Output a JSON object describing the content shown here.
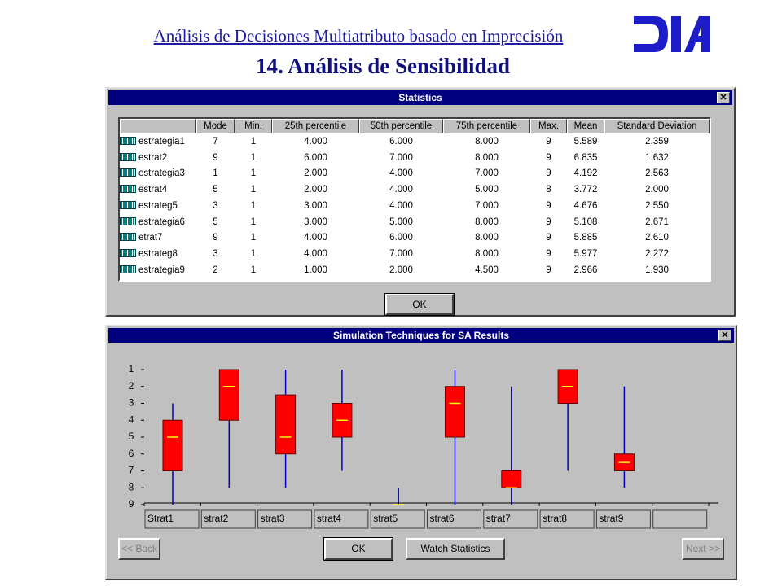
{
  "header": {
    "subtitle": "Análisis de Decisiones Multiatributo basado en Imprecisión",
    "title": "14. Análisis de Sensibilidad"
  },
  "stats": {
    "title": "Statistics",
    "table": {
      "columns": [
        "",
        "Mode",
        "Min.",
        "25th percentile",
        "50th percentile",
        "75th percentile",
        "Max.",
        "Mean",
        "Standard Deviation"
      ],
      "rows": [
        [
          "estrategia1",
          "7",
          "1",
          "4.000",
          "6.000",
          "8.000",
          "9",
          "5.589",
          "2.359"
        ],
        [
          "estrat2",
          "9",
          "1",
          "6.000",
          "7.000",
          "8.000",
          "9",
          "6.835",
          "1.632"
        ],
        [
          "estrategia3",
          "1",
          "1",
          "2.000",
          "4.000",
          "7.000",
          "9",
          "4.192",
          "2.563"
        ],
        [
          "estrat4",
          "5",
          "1",
          "2.000",
          "4.000",
          "5.000",
          "8",
          "3.772",
          "2.000"
        ],
        [
          "estrateg5",
          "3",
          "1",
          "3.000",
          "4.000",
          "7.000",
          "9",
          "4.676",
          "2.550"
        ],
        [
          "estrategia6",
          "5",
          "1",
          "3.000",
          "5.000",
          "8.000",
          "9",
          "5.108",
          "2.671"
        ],
        [
          "etrat7",
          "9",
          "1",
          "4.000",
          "6.000",
          "8.000",
          "9",
          "5.885",
          "2.610"
        ],
        [
          "estrateg8",
          "3",
          "1",
          "4.000",
          "7.000",
          "8.000",
          "9",
          "5.977",
          "2.272"
        ],
        [
          "estrategia9",
          "2",
          "1",
          "1.000",
          "2.000",
          "4.500",
          "9",
          "2.966",
          "1.930"
        ]
      ]
    },
    "ok": "OK"
  },
  "sim": {
    "title": "Simulation Techniques for SA Results",
    "chart_data": {
      "type": "box",
      "categories": [
        "Strat1",
        "strat2",
        "strat3",
        "strat4",
        "strat5",
        "strat6",
        "strat7",
        "strat8",
        "strat9"
      ],
      "min": [
        3,
        1,
        1,
        1,
        8,
        1,
        2,
        1,
        2
      ],
      "q1": [
        4,
        1,
        2.5,
        3,
        9,
        2,
        7,
        1,
        6
      ],
      "median": [
        5,
        2,
        5,
        4,
        9,
        3,
        8,
        2,
        6.5
      ],
      "q3": [
        7,
        4,
        6,
        5,
        9,
        5,
        8,
        3,
        7
      ],
      "max": [
        9,
        8,
        8,
        7,
        9,
        9,
        9,
        7,
        8
      ],
      "ylim": [
        1,
        9
      ],
      "yticks": [
        1,
        2,
        3,
        4,
        5,
        6,
        7,
        8,
        9
      ],
      "inverted": true,
      "box_color": "#ff0000",
      "whisker_color": "#0000c8",
      "median_color": "#ffff00"
    },
    "buttons": {
      "back": "<< Back",
      "ok": "OK",
      "watch": "Watch Statistics",
      "next": "Next >>"
    }
  }
}
